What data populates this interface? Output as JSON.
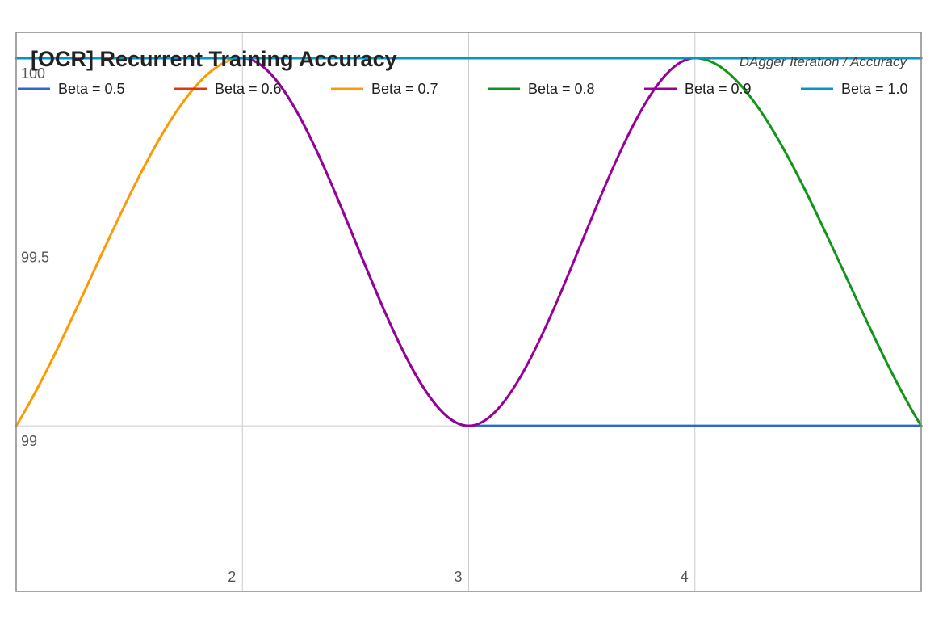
{
  "chart_data": {
    "type": "line",
    "title": "[OCR] Recurrent Training Accuracy",
    "subtitle": "DAgger Iteration / Accuracy",
    "xlabel": "",
    "ylabel": "",
    "x": [
      1,
      2,
      3,
      4,
      5
    ],
    "xlim": [
      1,
      5
    ],
    "ylim": [
      98.55,
      100.07
    ],
    "x_ticks": [
      2,
      3,
      4
    ],
    "y_ticks": [
      99,
      99.5,
      100
    ],
    "grid": true,
    "legend": "top",
    "smooth": true,
    "series": [
      {
        "name": "Beta = 0.5",
        "color": "#3366cc",
        "values": [
          100,
          100,
          99,
          99,
          99
        ]
      },
      {
        "name": "Beta = 0.6",
        "color": "#dc3912",
        "values": [
          100,
          100,
          100,
          100,
          100
        ]
      },
      {
        "name": "Beta = 0.7",
        "color": "#ff9900",
        "values": [
          99,
          100,
          100,
          100,
          100
        ]
      },
      {
        "name": "Beta = 0.8",
        "color": "#109618",
        "values": [
          100,
          100,
          100,
          100,
          99
        ]
      },
      {
        "name": "Beta = 0.9",
        "color": "#990099",
        "values": [
          100,
          100,
          99,
          100,
          100
        ]
      },
      {
        "name": "Beta = 1.0",
        "color": "#0099c6",
        "values": [
          100,
          100,
          100,
          100,
          100
        ]
      }
    ]
  }
}
